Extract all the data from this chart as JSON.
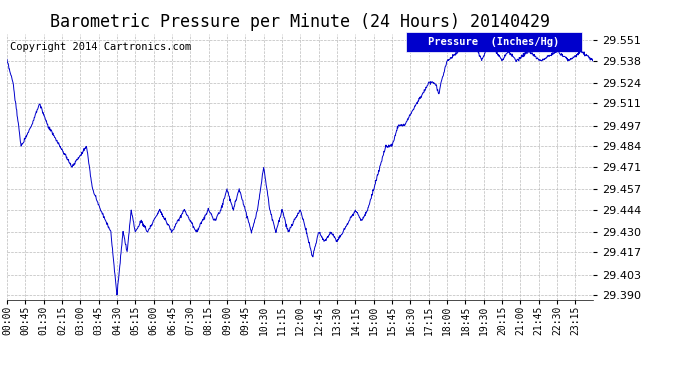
{
  "title": "Barometric Pressure per Minute (24 Hours) 20140429",
  "copyright_text": "Copyright 2014 Cartronics.com",
  "legend_label": "Pressure  (Inches/Hg)",
  "y_ticks": [
    29.39,
    29.403,
    29.417,
    29.43,
    29.444,
    29.457,
    29.471,
    29.484,
    29.497,
    29.511,
    29.524,
    29.538,
    29.551
  ],
  "ylim": [
    29.387,
    29.555
  ],
  "x_tick_labels": [
    "00:00",
    "00:45",
    "01:30",
    "02:15",
    "03:00",
    "03:45",
    "04:30",
    "05:15",
    "06:00",
    "06:45",
    "07:30",
    "08:15",
    "09:00",
    "09:45",
    "10:30",
    "11:15",
    "12:00",
    "12:45",
    "13:30",
    "14:15",
    "15:00",
    "15:45",
    "16:30",
    "17:15",
    "18:00",
    "18:45",
    "19:30",
    "20:15",
    "21:00",
    "21:45",
    "22:30",
    "23:15"
  ],
  "line_color": "#0000cc",
  "background_color": "#ffffff",
  "grid_color": "#bbbbbb",
  "title_fontsize": 12,
  "copyright_fontsize": 7.5,
  "legend_bg_color": "#0000cc",
  "legend_text_color": "#ffffff",
  "keypoints": [
    [
      0,
      29.538
    ],
    [
      15,
      29.524
    ],
    [
      35,
      29.484
    ],
    [
      60,
      29.497
    ],
    [
      80,
      29.511
    ],
    [
      100,
      29.497
    ],
    [
      130,
      29.484
    ],
    [
      160,
      29.471
    ],
    [
      195,
      29.484
    ],
    [
      210,
      29.457
    ],
    [
      230,
      29.444
    ],
    [
      255,
      29.43
    ],
    [
      270,
      29.39
    ],
    [
      285,
      29.43
    ],
    [
      295,
      29.417
    ],
    [
      305,
      29.444
    ],
    [
      315,
      29.43
    ],
    [
      330,
      29.437
    ],
    [
      345,
      29.43
    ],
    [
      360,
      29.437
    ],
    [
      375,
      29.444
    ],
    [
      390,
      29.437
    ],
    [
      405,
      29.43
    ],
    [
      420,
      29.437
    ],
    [
      435,
      29.444
    ],
    [
      450,
      29.437
    ],
    [
      465,
      29.43
    ],
    [
      480,
      29.437
    ],
    [
      495,
      29.444
    ],
    [
      510,
      29.437
    ],
    [
      525,
      29.444
    ],
    [
      540,
      29.457
    ],
    [
      555,
      29.444
    ],
    [
      570,
      29.457
    ],
    [
      585,
      29.444
    ],
    [
      600,
      29.43
    ],
    [
      615,
      29.444
    ],
    [
      630,
      29.471
    ],
    [
      645,
      29.444
    ],
    [
      660,
      29.43
    ],
    [
      675,
      29.444
    ],
    [
      690,
      29.43
    ],
    [
      705,
      29.437
    ],
    [
      720,
      29.444
    ],
    [
      735,
      29.43
    ],
    [
      750,
      29.414
    ],
    [
      765,
      29.43
    ],
    [
      780,
      29.424
    ],
    [
      795,
      29.43
    ],
    [
      810,
      29.424
    ],
    [
      825,
      29.43
    ],
    [
      840,
      29.437
    ],
    [
      855,
      29.444
    ],
    [
      870,
      29.437
    ],
    [
      885,
      29.444
    ],
    [
      900,
      29.457
    ],
    [
      915,
      29.471
    ],
    [
      930,
      29.484
    ],
    [
      945,
      29.484
    ],
    [
      960,
      29.497
    ],
    [
      975,
      29.497
    ],
    [
      990,
      29.504
    ],
    [
      1005,
      29.511
    ],
    [
      1020,
      29.517
    ],
    [
      1035,
      29.524
    ],
    [
      1050,
      29.524
    ],
    [
      1060,
      29.517
    ],
    [
      1065,
      29.524
    ],
    [
      1080,
      29.538
    ],
    [
      1110,
      29.544
    ],
    [
      1140,
      29.551
    ],
    [
      1155,
      29.544
    ],
    [
      1165,
      29.538
    ],
    [
      1175,
      29.544
    ],
    [
      1185,
      29.551
    ],
    [
      1200,
      29.544
    ],
    [
      1215,
      29.538
    ],
    [
      1230,
      29.544
    ],
    [
      1250,
      29.538
    ],
    [
      1280,
      29.544
    ],
    [
      1310,
      29.538
    ],
    [
      1350,
      29.544
    ],
    [
      1380,
      29.538
    ],
    [
      1410,
      29.544
    ],
    [
      1439,
      29.538
    ]
  ]
}
